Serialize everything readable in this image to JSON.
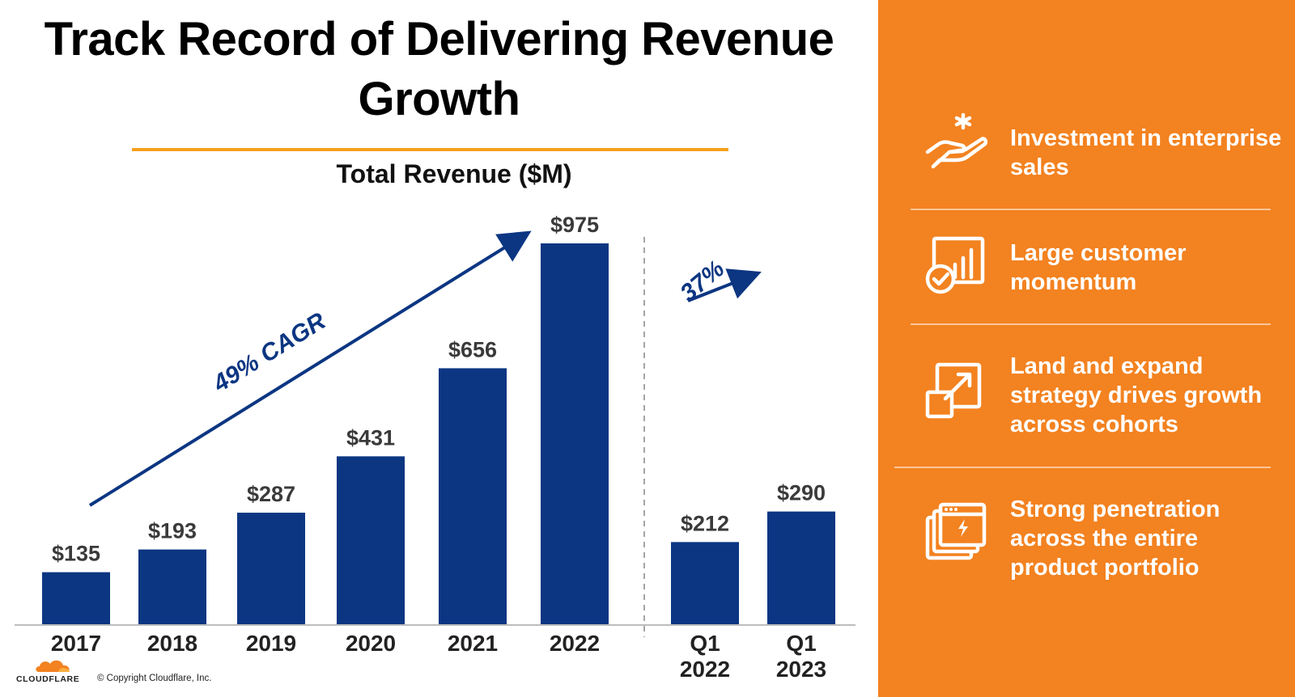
{
  "title": "Track Record of Delivering Revenue Growth",
  "chart_data": {
    "type": "bar",
    "title": "Total Revenue ($M)",
    "unit": "$M",
    "annual": {
      "categories": [
        "2017",
        "2018",
        "2019",
        "2020",
        "2021",
        "2022"
      ],
      "values": [
        135,
        193,
        287,
        431,
        656,
        975
      ],
      "labels": [
        "$135",
        "$193",
        "$287",
        "$431",
        "$656",
        "$975"
      ],
      "growth_annotation": "49% CAGR"
    },
    "quarterly": {
      "categories": [
        [
          "Q1",
          "2022"
        ],
        [
          "Q1",
          "2023"
        ]
      ],
      "values": [
        212,
        290
      ],
      "labels": [
        "$212",
        "$290"
      ],
      "growth_annotation": "37%"
    },
    "bar_color": "#0c3682",
    "arrow_color": "#0c3682"
  },
  "highlights": [
    {
      "icon": "hand-sparkle-icon",
      "text": "Investment in enterprise sales"
    },
    {
      "icon": "chart-check-icon",
      "text": "Large customer momentum"
    },
    {
      "icon": "expand-icon",
      "text": "Land and expand strategy drives growth across cohorts"
    },
    {
      "icon": "stacked-windows-icon",
      "text": "Strong penetration across the entire product portfolio"
    }
  ],
  "panel_color": "#f38220",
  "footer": {
    "logo_text": "CLOUDFLARE",
    "copyright": "© Copyright Cloudflare, Inc."
  }
}
